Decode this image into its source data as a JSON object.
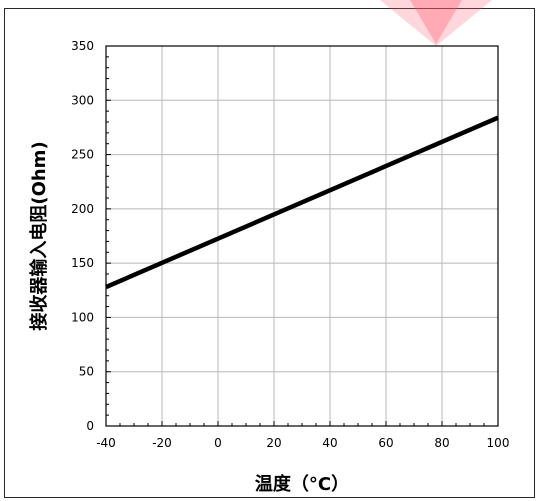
{
  "chart_data": {
    "type": "line",
    "xlabel": "温度（°C）",
    "ylabel": "接收器输入电阻(Ohm)",
    "xlim": [
      -40,
      100
    ],
    "ylim": [
      0,
      350
    ],
    "x_ticks": [
      -40,
      -20,
      0,
      20,
      40,
      60,
      80,
      100
    ],
    "y_ticks": [
      0,
      50,
      100,
      150,
      200,
      250,
      300,
      350
    ],
    "grid": true,
    "series": [
      {
        "color": "#000000",
        "x": [
          -40,
          100
        ],
        "y": [
          128,
          284
        ]
      }
    ]
  },
  "decor": {
    "marker_color": "#ff5a6e"
  }
}
